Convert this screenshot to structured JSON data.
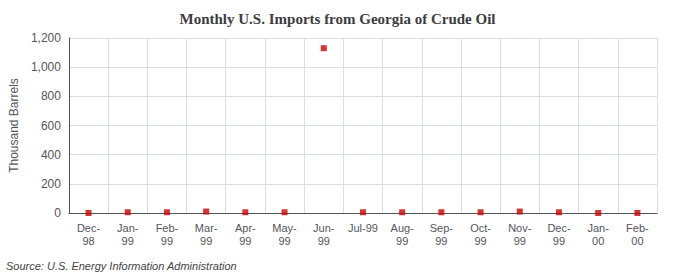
{
  "chart_data": {
    "type": "scatter",
    "title": "Monthly U.S. Imports from Georgia of Crude Oil",
    "y_label": "Thousand Barrels",
    "annotations": [
      "Source: U.S. Energy Information Administration"
    ],
    "categories": [
      "Dec-\n98",
      "Jan-\n99",
      "Feb-\n99",
      "Mar-\n99",
      "Apr-\n99",
      "May-\n99",
      "Jun-\n99",
      "Jul-99",
      "Aug-\n99",
      "Sep-\n99",
      "Oct-\n99",
      "Nov-\n99",
      "Dec-\n99",
      "Jan-\n00",
      "Feb-\n00"
    ],
    "values": [
      0,
      5,
      5,
      10,
      5,
      5,
      1130,
      5,
      5,
      5,
      5,
      10,
      5,
      0,
      0
    ],
    "color": "#cc0000",
    "marker": "square",
    "ylim": [
      0,
      1200
    ],
    "yticks": [
      0,
      200,
      400,
      600,
      800,
      {
        "value": 1000,
        "label": "1,000"
      },
      {
        "value": 1200,
        "label": "1,200"
      }
    ],
    "grid": true
  }
}
